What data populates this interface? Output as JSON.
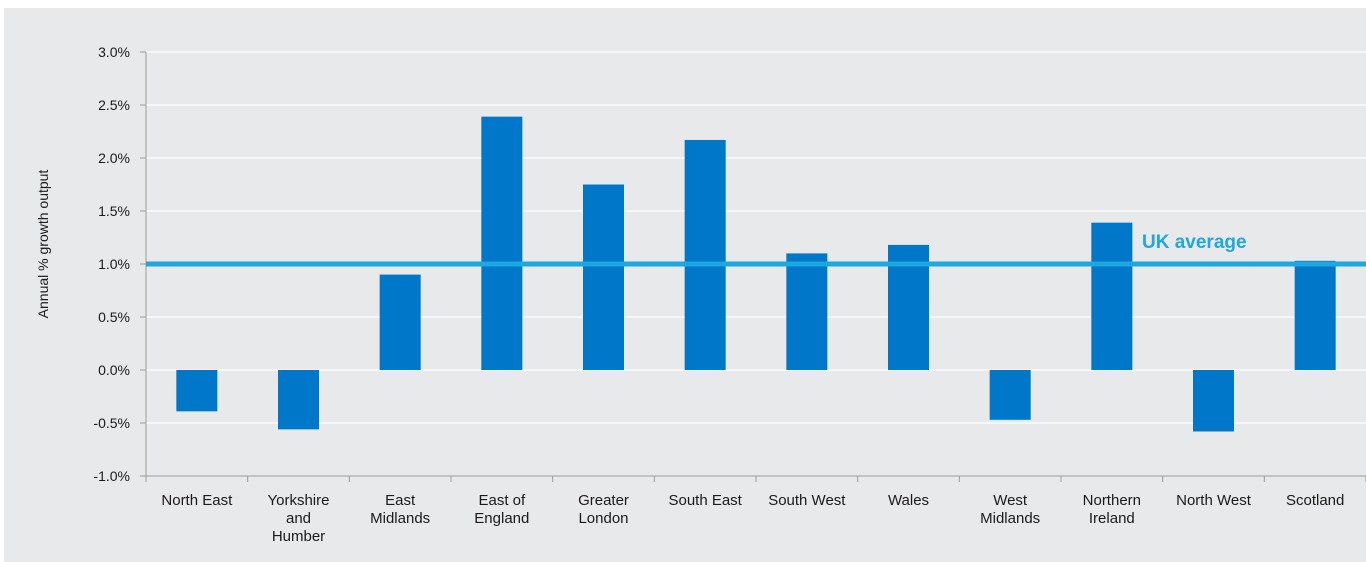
{
  "chart_data": {
    "type": "bar",
    "title": "",
    "xlabel": "",
    "ylabel": "Annual % growth output",
    "categories": [
      "North East",
      "Yorkshire and Humber",
      "East Midlands",
      "East of England",
      "Greater London",
      "South East",
      "South West",
      "Wales",
      "West Midlands",
      "Northern Ireland",
      "North West",
      "Scotland"
    ],
    "category_label_lines": [
      [
        "North East"
      ],
      [
        "Yorkshire",
        "and",
        "Humber"
      ],
      [
        "East",
        "Midlands"
      ],
      [
        "East of",
        "England"
      ],
      [
        "Greater",
        "London"
      ],
      [
        "South East"
      ],
      [
        "South West"
      ],
      [
        "Wales"
      ],
      [
        "West",
        "Midlands"
      ],
      [
        "Northern",
        "Ireland"
      ],
      [
        "North West"
      ],
      [
        "Scotland"
      ]
    ],
    "values": [
      -0.39,
      -0.56,
      0.9,
      2.39,
      1.75,
      2.17,
      1.1,
      1.18,
      -0.47,
      1.39,
      -0.58,
      1.03
    ],
    "ylim": [
      -1.0,
      3.0
    ],
    "y_ticks": [
      -1.0,
      -0.5,
      0.0,
      0.5,
      1.0,
      1.5,
      2.0,
      2.5,
      3.0
    ],
    "y_tick_labels": [
      "-1.0%",
      "-0.5%",
      "0.0%",
      "0.5%",
      "1.0%",
      "1.5%",
      "2.0%",
      "2.5%",
      "3.0%"
    ],
    "grid": true,
    "legend": "none",
    "reference_line": {
      "label": "UK average",
      "value": 1.0
    },
    "colors": {
      "bar": "#0077c8",
      "reference": "#1ea7e1",
      "grid": "#ffffff",
      "background": "#e8e9eb",
      "axis": "#9a9a9a"
    }
  }
}
